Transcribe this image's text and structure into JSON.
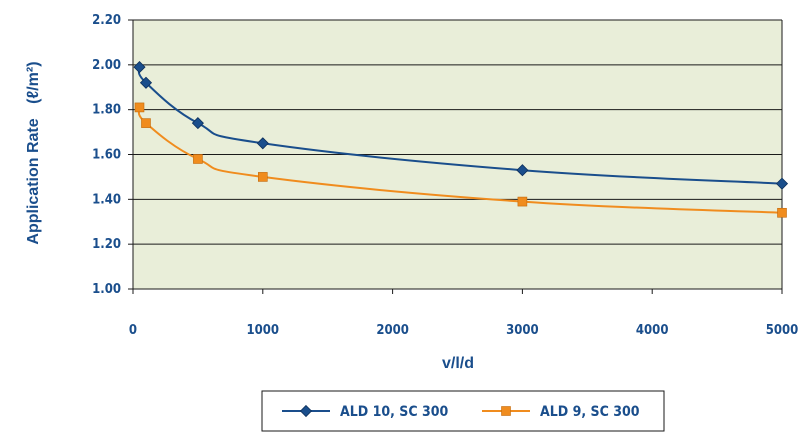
{
  "chart_data": {
    "type": "line",
    "xlabel": "v/l/d",
    "ylabel": "Application Rate",
    "ylabel_unit": "(ℓ/m²)",
    "xlim": [
      0,
      5000
    ],
    "ylim": [
      1.0,
      2.2
    ],
    "x_ticks": [
      "0",
      "1000",
      "2000",
      "3000",
      "4000",
      "5000"
    ],
    "y_ticks": [
      "1.00",
      "1.20",
      "1.40",
      "1.60",
      "1.80",
      "2.00",
      "2.20"
    ],
    "grid": true,
    "legend_position": "bottom",
    "series": [
      {
        "name": "ALD 10, SC 300",
        "color": "#1a4e8c",
        "marker": "diamond",
        "points": [
          [
            50,
            1.99
          ],
          [
            100,
            1.92
          ],
          [
            500,
            1.74
          ],
          [
            1000,
            1.65
          ],
          [
            3000,
            1.53
          ],
          [
            5000,
            1.47
          ]
        ]
      },
      {
        "name": "ALD 9, SC 300",
        "color": "#f08c1e",
        "marker": "square",
        "points": [
          [
            50,
            1.81
          ],
          [
            100,
            1.74
          ],
          [
            500,
            1.58
          ],
          [
            1000,
            1.5
          ],
          [
            3000,
            1.39
          ],
          [
            5000,
            1.34
          ]
        ]
      }
    ]
  },
  "colors": {
    "plot_background": "#e9eed9",
    "gridline": "#1a1a1a",
    "axis_text": "#1a4e8c"
  }
}
